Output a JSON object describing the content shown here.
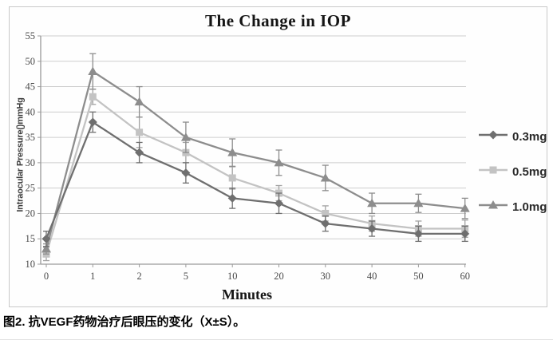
{
  "figure": {
    "caption": "图2. 抗VEGF药物治疗后眼压的变化（X±S）。"
  },
  "chart_data": {
    "type": "line",
    "title": "The Change in IOP",
    "xlabel": "Minutes",
    "ylabel": "Intraocular Pressure()mmHg",
    "categories": [
      "0",
      "1",
      "2",
      "5",
      "10",
      "20",
      "30",
      "40",
      "50",
      "60"
    ],
    "ylim": [
      10,
      55
    ],
    "ytick_step": 5,
    "grid": true,
    "error_bars": true,
    "legend_position": "right-outside",
    "series": [
      {
        "name": "0.3mg",
        "marker": "diamond",
        "color": "#6f6f6f",
        "error_color": "#6f6f6f",
        "values": [
          15,
          38,
          32,
          28,
          23,
          22,
          18,
          17,
          16,
          16
        ],
        "errors": [
          1.5,
          2,
          2,
          2,
          2,
          2,
          1.5,
          1.5,
          1.5,
          1.5
        ]
      },
      {
        "name": "0.5mg",
        "marker": "square",
        "color": "#c3c3c3",
        "error_color": "#a2a2a2",
        "values": [
          12,
          43,
          36,
          32,
          27,
          24,
          20,
          18,
          17,
          17
        ],
        "errors": [
          1.3,
          1.5,
          3,
          2,
          2.2,
          1.5,
          1.5,
          1.5,
          1.5,
          1.7
        ]
      },
      {
        "name": "1.0mg",
        "marker": "triangle",
        "color": "#8d8d8d",
        "error_color": "#8d8d8d",
        "values": [
          13,
          48,
          42,
          35,
          32,
          30,
          27,
          22,
          22,
          21
        ],
        "errors": [
          1,
          3.5,
          3,
          3,
          2.7,
          2.5,
          2.5,
          2,
          1.8,
          2
        ]
      }
    ],
    "style": {
      "grid_color": "#cdcdcd",
      "axis_color": "#9a9a9a",
      "tick_text_color": "#4a4a4a",
      "frame_border_color": "#c9c9c9"
    }
  }
}
